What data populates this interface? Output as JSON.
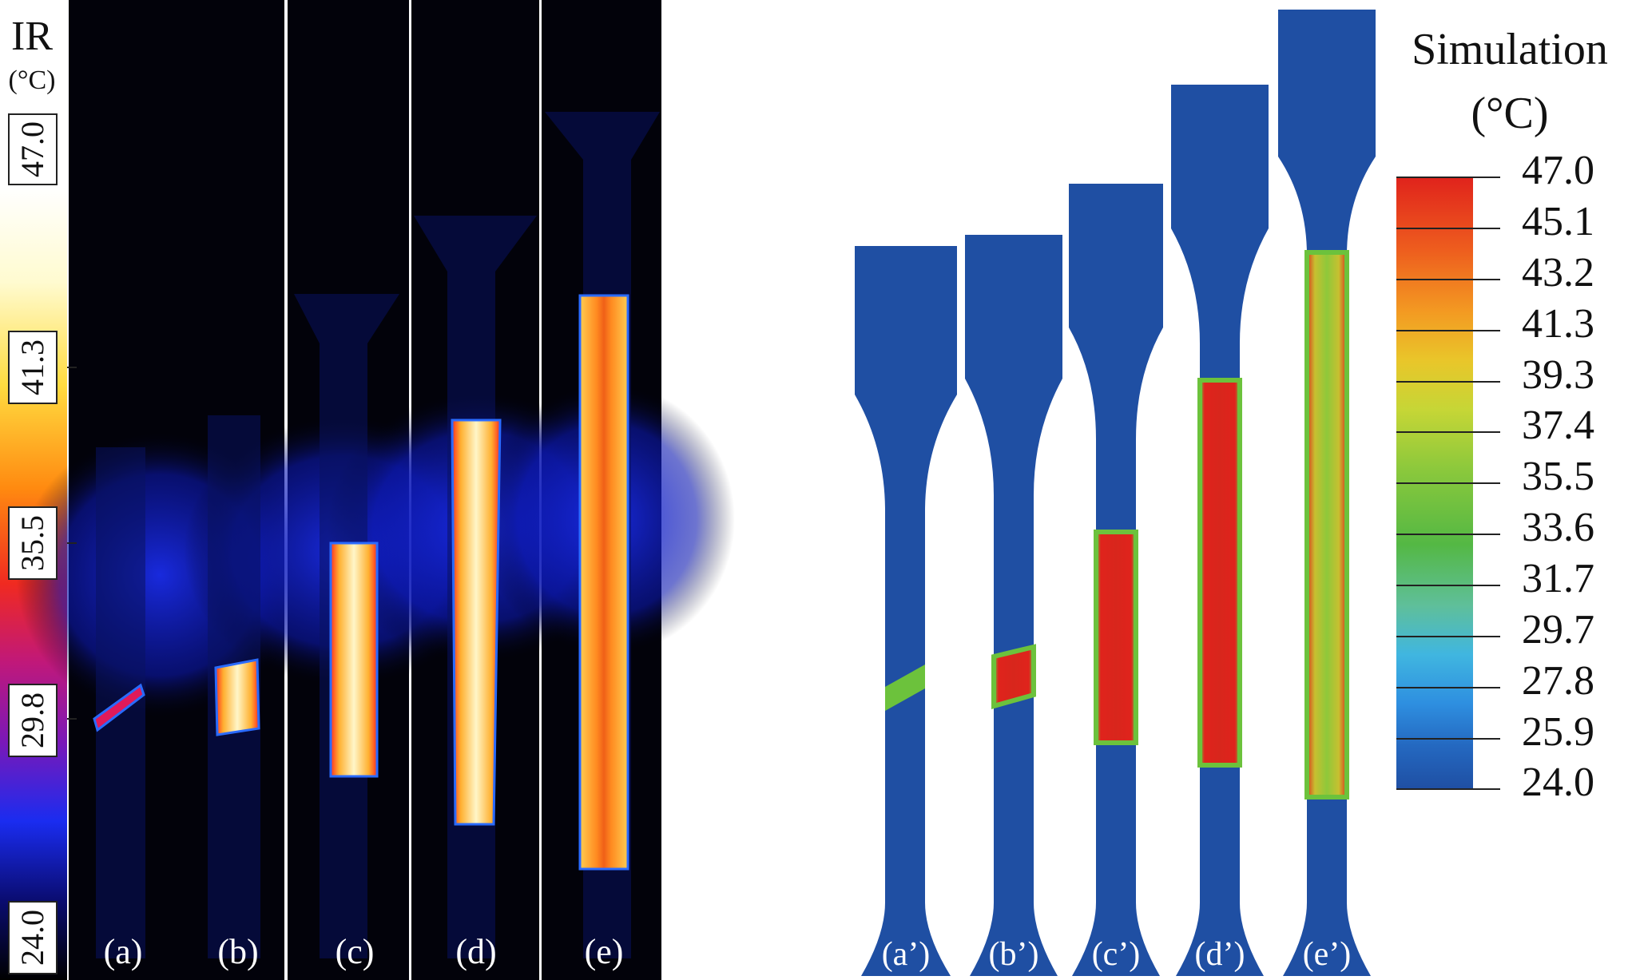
{
  "ir_panel": {
    "title": "IR",
    "unit": "(°C)",
    "scale_ticks": [
      "47.0",
      "41.3",
      "35.5",
      "29.8",
      "24.0"
    ],
    "specimen_labels": [
      "(a)",
      "(b)",
      "(c)",
      "(d)",
      "(e)"
    ]
  },
  "simulation_panel": {
    "title": "Simulation",
    "unit": "(°C)",
    "scale_ticks": [
      "47.0",
      "45.1",
      "43.2",
      "41.3",
      "39.3",
      "37.4",
      "35.5",
      "33.6",
      "31.7",
      "29.7",
      "27.8",
      "25.9",
      "24.0"
    ],
    "specimen_labels": [
      "(a’)",
      "(b’)",
      "(c’)",
      "(d’)",
      "(e’)"
    ]
  },
  "colors": {
    "sim_blue": "#1f4fa3",
    "sim_red": "#e0231c",
    "sim_green": "#6cc23c",
    "ir_hot": "#fff6c8",
    "ir_background": "#02020a"
  }
}
